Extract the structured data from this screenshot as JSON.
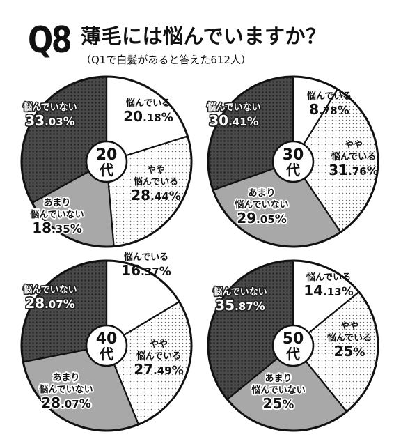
{
  "header": {
    "question_number": "Q8",
    "title": "薄毛には悩んでいますか？",
    "subtitle": "（Q1で白髪があると答えた612人）"
  },
  "colors": {
    "stroke": "#111111",
    "dark_fill": "#4a4a4a",
    "mid_fill": "#a8a8a8",
    "light_fill": "#ffffff",
    "white_text_stroke": "#ffffff"
  },
  "chart_data": [
    {
      "type": "pie",
      "center_label": [
        "20",
        "代"
      ],
      "series": [
        {
          "label": [
            "悩んでいる"
          ],
          "pct_num": "20",
          "pct_dec": ".18",
          "value": 20.18
        },
        {
          "label": [
            "やや",
            "悩んでいる"
          ],
          "pct_num": "28",
          "pct_dec": ".44",
          "value": 28.44
        },
        {
          "label": [
            "あまり",
            "悩んでいない"
          ],
          "pct_num": "18",
          "pct_dec": ".35",
          "value": 18.35
        },
        {
          "label": [
            "悩んでいない"
          ],
          "pct_num": "33",
          "pct_dec": ".03",
          "value": 33.03
        }
      ]
    },
    {
      "type": "pie",
      "center_label": [
        "30",
        "代"
      ],
      "series": [
        {
          "label": [
            "悩んでいる"
          ],
          "pct_num": "8",
          "pct_dec": ".78",
          "value": 8.78
        },
        {
          "label": [
            "やや",
            "悩んでいる"
          ],
          "pct_num": "31",
          "pct_dec": ".76",
          "value": 31.76
        },
        {
          "label": [
            "あまり",
            "悩んでいない"
          ],
          "pct_num": "29",
          "pct_dec": ".05",
          "value": 29.05
        },
        {
          "label": [
            "悩んでいない"
          ],
          "pct_num": "30",
          "pct_dec": ".41",
          "value": 30.41
        }
      ]
    },
    {
      "type": "pie",
      "center_label": [
        "40",
        "代"
      ],
      "series": [
        {
          "label": [
            "悩んでいる"
          ],
          "pct_num": "16",
          "pct_dec": ".37",
          "value": 16.37
        },
        {
          "label": [
            "やや",
            "悩んでいる"
          ],
          "pct_num": "27",
          "pct_dec": ".49",
          "value": 27.49
        },
        {
          "label": [
            "あまり",
            "悩んでいない"
          ],
          "pct_num": "28",
          "pct_dec": ".07",
          "value": 28.07
        },
        {
          "label": [
            "悩んでいない"
          ],
          "pct_num": "28",
          "pct_dec": ".07",
          "value": 28.07
        }
      ]
    },
    {
      "type": "pie",
      "center_label": [
        "50",
        "代"
      ],
      "series": [
        {
          "label": [
            "悩んでいる"
          ],
          "pct_num": "14",
          "pct_dec": ".13",
          "value": 14.13
        },
        {
          "label": [
            "やや",
            "悩んでいる"
          ],
          "pct_num": "25",
          "pct_dec": "",
          "value": 25
        },
        {
          "label": [
            "あまり",
            "悩んでいない"
          ],
          "pct_num": "25",
          "pct_dec": "",
          "value": 25
        },
        {
          "label": [
            "悩んでいない"
          ],
          "pct_num": "35",
          "pct_dec": ".87",
          "value": 35.87
        }
      ]
    }
  ]
}
